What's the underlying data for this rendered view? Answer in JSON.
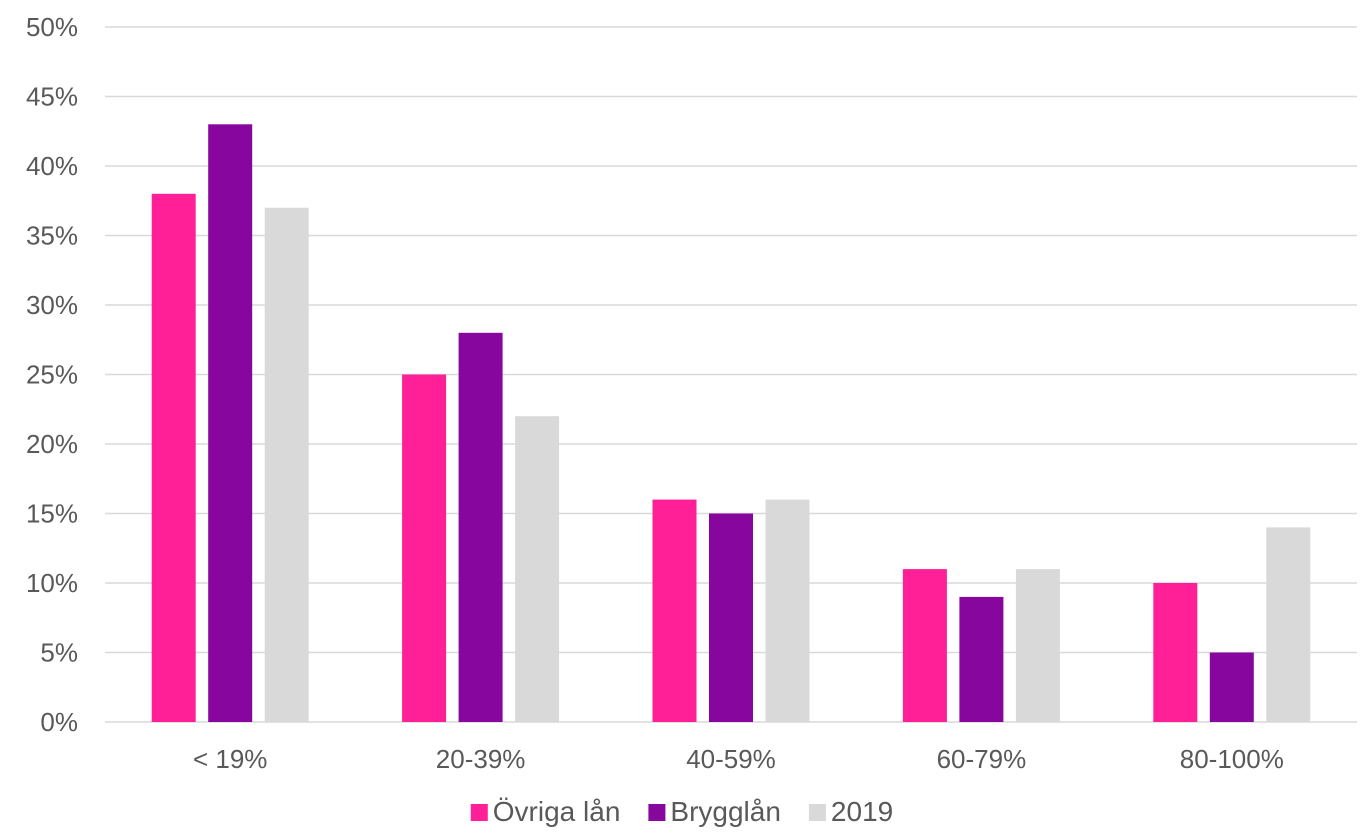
{
  "chart_data": {
    "type": "bar",
    "categories": [
      "< 19%",
      "20-39%",
      "40-59%",
      "60-79%",
      "80-100%"
    ],
    "series": [
      {
        "name": "Övriga lån",
        "color": "#ff1f96",
        "values": [
          38,
          25,
          16,
          11,
          10
        ]
      },
      {
        "name": "Brygglån",
        "color": "#87079e",
        "values": [
          43,
          28,
          15,
          9,
          5
        ]
      },
      {
        "name": "2019",
        "color": "#d9d9d9",
        "values": [
          37,
          22,
          16,
          11,
          14
        ]
      }
    ],
    "y_ticks": [
      "0%",
      "5%",
      "10%",
      "15%",
      "20%",
      "25%",
      "30%",
      "35%",
      "40%",
      "45%",
      "50%"
    ],
    "ylim": [
      0,
      50
    ],
    "title": "",
    "xlabel": "",
    "ylabel": "",
    "grid": true,
    "legend_position": "bottom"
  }
}
